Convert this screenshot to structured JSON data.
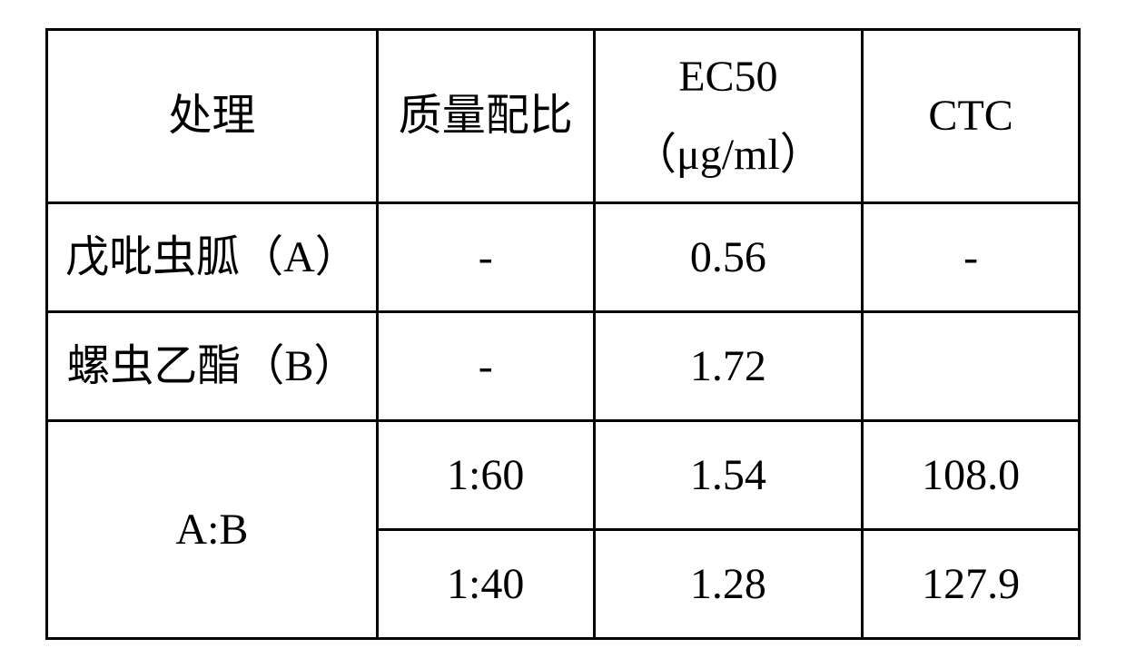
{
  "table": {
    "headers": {
      "treatment": "处理",
      "massRatio": "质量配比",
      "ec50Label": "EC50",
      "ec50Unit": "（μg/ml）",
      "ctc": "CTC"
    },
    "rows": [
      {
        "treatment": "戊吡虫胍（A）",
        "massRatio": "-",
        "ec50": "0.56",
        "ctc": "-"
      },
      {
        "treatment": "螺虫乙酯（B）",
        "massRatio": "-",
        "ec50": "1.72",
        "ctc": ""
      }
    ],
    "mergedGroup": {
      "treatment": "A:B",
      "subRows": [
        {
          "massRatio": "1:60",
          "ec50": "1.54",
          "ctc": "108.0"
        },
        {
          "massRatio": "1:40",
          "ec50": "1.28",
          "ctc": "127.9"
        }
      ]
    },
    "style": {
      "borderColor": "#000000",
      "borderWidth": 3,
      "backgroundColor": "#ffffff",
      "textColor": "#000000",
      "fontSize": 48,
      "fontFamily": "SimSun"
    }
  }
}
